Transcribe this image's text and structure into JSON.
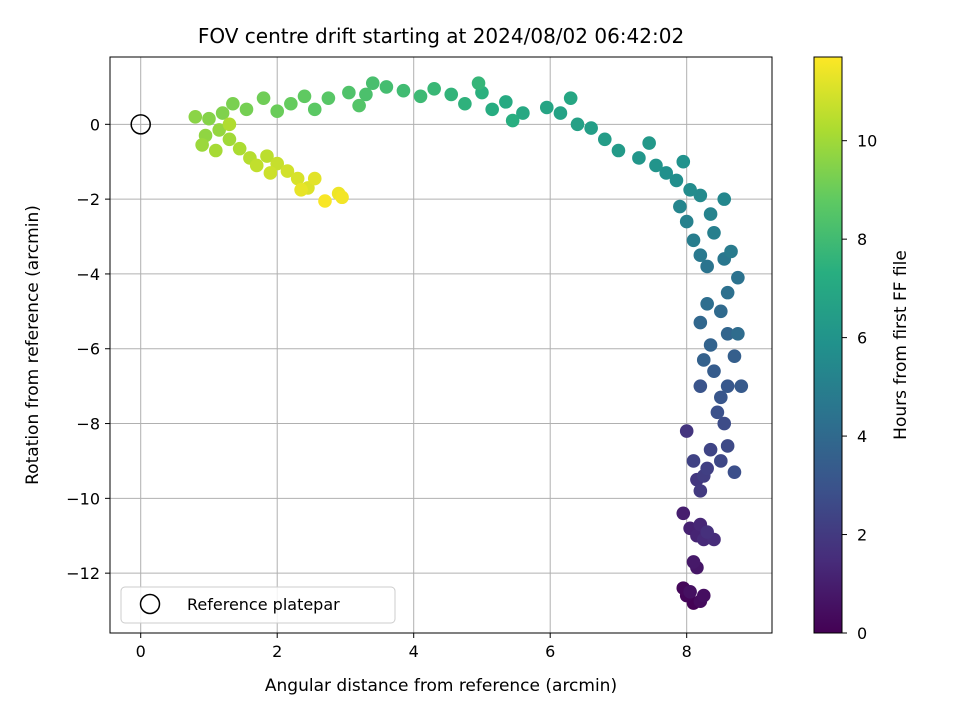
{
  "chart_data": {
    "type": "scatter",
    "title": "FOV centre drift starting at 2024/08/02 06:42:02",
    "xlabel": "Angular distance from reference (arcmin)",
    "ylabel": "Rotation from reference (arcmin)",
    "xlim": [
      -0.45,
      9.25
    ],
    "ylim": [
      -13.6,
      1.8
    ],
    "xticks": [
      0,
      2,
      4,
      6,
      8
    ],
    "yticks": [
      -12,
      -10,
      -8,
      -6,
      -4,
      -2,
      0
    ],
    "grid": true,
    "legend": {
      "position": "lower-left",
      "entries": [
        "Reference platepar"
      ]
    },
    "reference_point": {
      "x": 0,
      "y": 0
    },
    "colorbar": {
      "label": "Hours from first FF file",
      "min": 0,
      "max": 11.7,
      "ticks": [
        0,
        2,
        4,
        6,
        8,
        10
      ],
      "colormap": "viridis"
    },
    "points": [
      {
        "x": 8.1,
        "y": -12.8,
        "h": 0.05
      },
      {
        "x": 8.0,
        "y": -12.6,
        "h": 0.15
      },
      {
        "x": 7.95,
        "y": -12.4,
        "h": 0.25
      },
      {
        "x": 8.2,
        "y": -12.75,
        "h": 0.35
      },
      {
        "x": 8.25,
        "y": -12.6,
        "h": 0.45
      },
      {
        "x": 8.05,
        "y": -12.5,
        "h": 0.5
      },
      {
        "x": 8.15,
        "y": -11.85,
        "h": 0.7
      },
      {
        "x": 8.1,
        "y": -11.7,
        "h": 0.8
      },
      {
        "x": 7.95,
        "y": -10.4,
        "h": 1.0
      },
      {
        "x": 8.05,
        "y": -10.8,
        "h": 1.1
      },
      {
        "x": 8.15,
        "y": -11.0,
        "h": 1.2
      },
      {
        "x": 8.2,
        "y": -10.7,
        "h": 1.3
      },
      {
        "x": 8.25,
        "y": -11.1,
        "h": 1.4
      },
      {
        "x": 8.4,
        "y": -11.1,
        "h": 1.5
      },
      {
        "x": 8.3,
        "y": -10.9,
        "h": 1.6
      },
      {
        "x": 8.0,
        "y": -8.2,
        "h": 1.8
      },
      {
        "x": 8.15,
        "y": -9.5,
        "h": 1.9
      },
      {
        "x": 8.2,
        "y": -9.8,
        "h": 2.0
      },
      {
        "x": 8.25,
        "y": -9.4,
        "h": 2.1
      },
      {
        "x": 8.3,
        "y": -9.2,
        "h": 2.2
      },
      {
        "x": 8.1,
        "y": -9.0,
        "h": 2.3
      },
      {
        "x": 8.35,
        "y": -8.7,
        "h": 2.4
      },
      {
        "x": 8.5,
        "y": -9.0,
        "h": 2.5
      },
      {
        "x": 8.6,
        "y": -8.6,
        "h": 2.6
      },
      {
        "x": 8.55,
        "y": -8.0,
        "h": 2.7
      },
      {
        "x": 8.7,
        "y": -9.3,
        "h": 2.8
      },
      {
        "x": 8.45,
        "y": -7.7,
        "h": 2.9
      },
      {
        "x": 8.2,
        "y": -7.0,
        "h": 3.0
      },
      {
        "x": 8.5,
        "y": -7.3,
        "h": 3.1
      },
      {
        "x": 8.6,
        "y": -7.0,
        "h": 3.2
      },
      {
        "x": 8.8,
        "y": -7.0,
        "h": 3.3
      },
      {
        "x": 8.4,
        "y": -6.6,
        "h": 3.4
      },
      {
        "x": 8.7,
        "y": -6.2,
        "h": 3.5
      },
      {
        "x": 8.25,
        "y": -6.3,
        "h": 3.6
      },
      {
        "x": 8.35,
        "y": -5.9,
        "h": 3.7
      },
      {
        "x": 8.6,
        "y": -5.6,
        "h": 3.8
      },
      {
        "x": 8.2,
        "y": -5.3,
        "h": 3.9
      },
      {
        "x": 8.5,
        "y": -5.0,
        "h": 4.0
      },
      {
        "x": 8.75,
        "y": -5.6,
        "h": 4.1
      },
      {
        "x": 8.3,
        "y": -4.8,
        "h": 4.2
      },
      {
        "x": 8.6,
        "y": -4.5,
        "h": 4.3
      },
      {
        "x": 8.75,
        "y": -4.1,
        "h": 4.4
      },
      {
        "x": 8.3,
        "y": -3.8,
        "h": 4.5
      },
      {
        "x": 8.55,
        "y": -3.6,
        "h": 4.6
      },
      {
        "x": 8.2,
        "y": -3.5,
        "h": 4.7
      },
      {
        "x": 8.65,
        "y": -3.4,
        "h": 4.8
      },
      {
        "x": 8.1,
        "y": -3.1,
        "h": 4.9
      },
      {
        "x": 8.4,
        "y": -2.9,
        "h": 5.0
      },
      {
        "x": 8.0,
        "y": -2.6,
        "h": 5.1
      },
      {
        "x": 8.35,
        "y": -2.4,
        "h": 5.2
      },
      {
        "x": 7.9,
        "y": -2.2,
        "h": 5.3
      },
      {
        "x": 8.55,
        "y": -2.0,
        "h": 5.4
      },
      {
        "x": 8.2,
        "y": -1.9,
        "h": 5.5
      },
      {
        "x": 8.05,
        "y": -1.75,
        "h": 5.6
      },
      {
        "x": 7.85,
        "y": -1.5,
        "h": 5.7
      },
      {
        "x": 7.7,
        "y": -1.3,
        "h": 5.8
      },
      {
        "x": 7.95,
        "y": -1.0,
        "h": 5.9
      },
      {
        "x": 7.55,
        "y": -1.1,
        "h": 6.0
      },
      {
        "x": 7.3,
        "y": -0.9,
        "h": 6.1
      },
      {
        "x": 7.45,
        "y": -0.5,
        "h": 6.2
      },
      {
        "x": 7.0,
        "y": -0.7,
        "h": 6.3
      },
      {
        "x": 6.8,
        "y": -0.4,
        "h": 6.4
      },
      {
        "x": 6.6,
        "y": -0.1,
        "h": 6.5
      },
      {
        "x": 6.4,
        "y": 0.0,
        "h": 6.6
      },
      {
        "x": 6.15,
        "y": 0.3,
        "h": 6.7
      },
      {
        "x": 5.95,
        "y": 0.45,
        "h": 6.8
      },
      {
        "x": 6.3,
        "y": 0.7,
        "h": 6.9
      },
      {
        "x": 5.6,
        "y": 0.3,
        "h": 7.0
      },
      {
        "x": 5.35,
        "y": 0.6,
        "h": 7.1
      },
      {
        "x": 5.15,
        "y": 0.4,
        "h": 7.2
      },
      {
        "x": 5.45,
        "y": 0.1,
        "h": 7.3
      },
      {
        "x": 5.0,
        "y": 0.85,
        "h": 7.4
      },
      {
        "x": 4.75,
        "y": 0.55,
        "h": 7.5
      },
      {
        "x": 4.55,
        "y": 0.8,
        "h": 7.6
      },
      {
        "x": 4.95,
        "y": 1.1,
        "h": 7.7
      },
      {
        "x": 4.3,
        "y": 0.95,
        "h": 7.8
      },
      {
        "x": 4.1,
        "y": 0.75,
        "h": 7.9
      },
      {
        "x": 3.85,
        "y": 0.9,
        "h": 8.0
      },
      {
        "x": 3.6,
        "y": 1.0,
        "h": 8.1
      },
      {
        "x": 3.4,
        "y": 1.1,
        "h": 8.2
      },
      {
        "x": 3.3,
        "y": 0.8,
        "h": 8.3
      },
      {
        "x": 3.05,
        "y": 0.85,
        "h": 8.4
      },
      {
        "x": 3.2,
        "y": 0.5,
        "h": 8.5
      },
      {
        "x": 2.75,
        "y": 0.7,
        "h": 8.6
      },
      {
        "x": 2.55,
        "y": 0.4,
        "h": 8.7
      },
      {
        "x": 2.4,
        "y": 0.75,
        "h": 8.8
      },
      {
        "x": 2.2,
        "y": 0.55,
        "h": 8.9
      },
      {
        "x": 2.0,
        "y": 0.35,
        "h": 9.0
      },
      {
        "x": 1.8,
        "y": 0.7,
        "h": 9.1
      },
      {
        "x": 1.55,
        "y": 0.4,
        "h": 9.2
      },
      {
        "x": 1.35,
        "y": 0.55,
        "h": 9.3
      },
      {
        "x": 1.2,
        "y": 0.3,
        "h": 9.4
      },
      {
        "x": 1.0,
        "y": 0.15,
        "h": 9.5
      },
      {
        "x": 0.8,
        "y": 0.2,
        "h": 9.6
      },
      {
        "x": 0.95,
        "y": -0.3,
        "h": 9.7
      },
      {
        "x": 1.15,
        "y": -0.15,
        "h": 9.8
      },
      {
        "x": 0.9,
        "y": -0.55,
        "h": 9.9
      },
      {
        "x": 1.3,
        "y": -0.4,
        "h": 10.0
      },
      {
        "x": 1.1,
        "y": -0.7,
        "h": 10.1
      },
      {
        "x": 1.45,
        "y": -0.65,
        "h": 10.2
      },
      {
        "x": 1.3,
        "y": 0.0,
        "h": 10.3
      },
      {
        "x": 1.6,
        "y": -0.9,
        "h": 10.4
      },
      {
        "x": 1.85,
        "y": -0.85,
        "h": 10.5
      },
      {
        "x": 1.7,
        "y": -1.1,
        "h": 10.6
      },
      {
        "x": 2.0,
        "y": -1.05,
        "h": 10.7
      },
      {
        "x": 1.9,
        "y": -1.3,
        "h": 10.8
      },
      {
        "x": 2.15,
        "y": -1.25,
        "h": 10.9
      },
      {
        "x": 2.3,
        "y": -1.45,
        "h": 11.0
      },
      {
        "x": 2.45,
        "y": -1.7,
        "h": 11.1
      },
      {
        "x": 2.55,
        "y": -1.45,
        "h": 11.2
      },
      {
        "x": 2.35,
        "y": -1.75,
        "h": 11.3
      },
      {
        "x": 2.9,
        "y": -1.85,
        "h": 11.4
      },
      {
        "x": 2.95,
        "y": -1.95,
        "h": 11.5
      },
      {
        "x": 2.7,
        "y": -2.05,
        "h": 11.6
      }
    ]
  }
}
